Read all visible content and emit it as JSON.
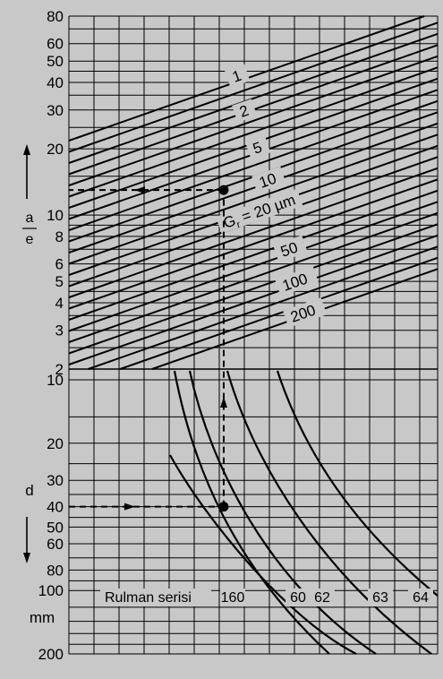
{
  "chart_data": {
    "type": "nomogram",
    "background": "#c8c8c8",
    "line_color": "#000000",
    "top_panel": {
      "axis_label_numerator": "a",
      "axis_label_denominator": "e",
      "scale": "log",
      "ylim": [
        2,
        80
      ],
      "ticks": [
        2,
        3,
        4,
        5,
        6,
        8,
        10,
        20,
        30,
        40,
        50,
        60,
        80
      ],
      "clearance_curves": [
        {
          "label": "1"
        },
        {
          "label": "2"
        },
        {
          "label": "5"
        },
        {
          "label": "10"
        },
        {
          "label_main": "G",
          "label_sub": "r",
          "label_rest": " = 20 µm"
        },
        {
          "label": "50"
        },
        {
          "label": "100"
        },
        {
          "label": "200"
        }
      ]
    },
    "bottom_panel": {
      "axis_label": "d",
      "unit": "mm",
      "scale": "log",
      "ylim": [
        10,
        200
      ],
      "ticks": [
        10,
        20,
        30,
        40,
        50,
        60,
        80,
        100,
        200
      ],
      "series_title": "Rulman serisi",
      "series": [
        {
          "name": "160"
        },
        {
          "name": "60"
        },
        {
          "name": "62"
        },
        {
          "name": "63"
        },
        {
          "name": "64"
        }
      ]
    },
    "example": {
      "d": 40,
      "a_over_e": 13
    }
  }
}
